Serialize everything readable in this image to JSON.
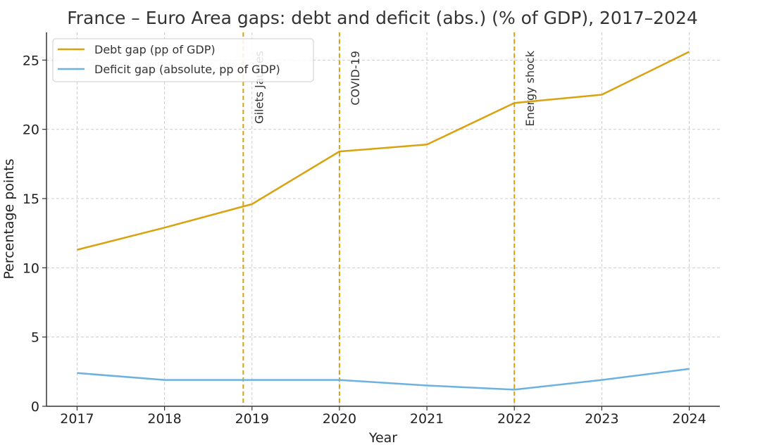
{
  "chart_data": {
    "type": "line",
    "title": "France – Euro Area gaps: debt and deficit (abs.) (% of GDP), 2017–2024",
    "xlabel": "Year",
    "ylabel": "Percentage points",
    "x": [
      2017,
      2018,
      2019,
      2020,
      2021,
      2022,
      2023,
      2024
    ],
    "xticks": [
      "2017",
      "2018",
      "2019",
      "2020",
      "2021",
      "2022",
      "2023",
      "2024"
    ],
    "xlim": [
      2016.65,
      2024.35
    ],
    "ylim": [
      0,
      27
    ],
    "yticks": [
      0,
      5,
      10,
      15,
      20,
      25
    ],
    "grid": true,
    "legend_position": "top-left",
    "series": [
      {
        "name": "Debt gap (pp of GDP)",
        "color": "#d9a20f",
        "values": [
          11.3,
          12.9,
          14.6,
          18.4,
          18.9,
          21.9,
          22.5,
          25.6
        ]
      },
      {
        "name": "Deficit gap (absolute, pp of GDP)",
        "color": "#6cb2e0",
        "values": [
          2.4,
          1.9,
          1.9,
          1.9,
          1.5,
          1.2,
          1.9,
          2.7
        ]
      }
    ],
    "events": [
      {
        "x": 2018.9,
        "label": "Gilets Jaunes"
      },
      {
        "x": 2020.0,
        "label": "COVID-19"
      },
      {
        "x": 2022.0,
        "label": "Energy shock"
      }
    ]
  }
}
